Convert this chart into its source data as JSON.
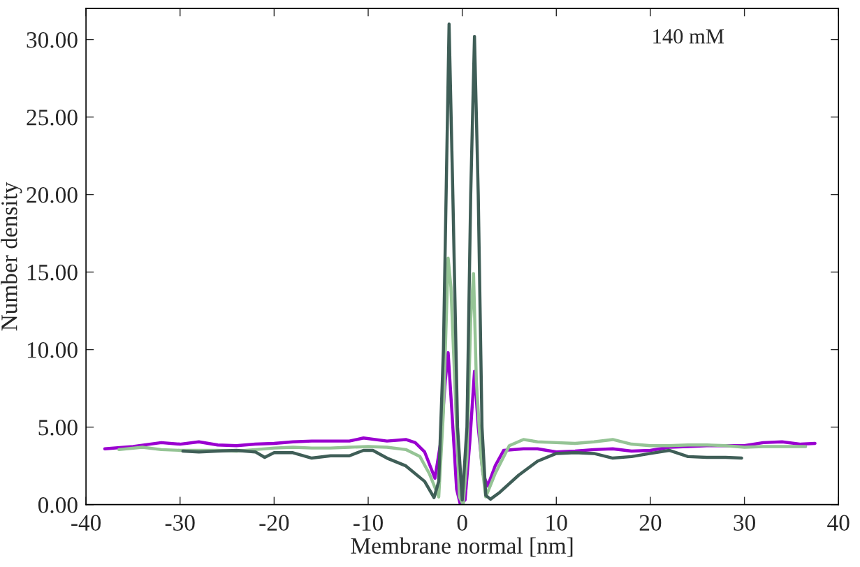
{
  "chart_data": {
    "type": "line",
    "xlabel": "Membrane normal [nm]",
    "ylabel": "Number density",
    "annotations": [
      "140 mM"
    ],
    "xlim": [
      -40,
      40
    ],
    "xticks": [
      -40,
      -30,
      -20,
      -10,
      0,
      10,
      20,
      30,
      40
    ],
    "ylim": [
      0,
      32
    ],
    "yticks": [
      {
        "value": 0,
        "label": "0.00"
      },
      {
        "value": 5,
        "label": "5.00"
      },
      {
        "value": 10,
        "label": "10.00"
      },
      {
        "value": 15,
        "label": "15.00"
      },
      {
        "value": 20,
        "label": "20.00"
      },
      {
        "value": 25,
        "label": "25.00"
      },
      {
        "value": 30,
        "label": "30.00"
      }
    ],
    "grid": false,
    "marker": "none",
    "line_style": "solid",
    "series": [
      {
        "color": "#9a00d0",
        "x": [
          -38,
          -35,
          -32,
          -30,
          -28,
          -26,
          -24,
          -22,
          -20,
          -18,
          -16,
          -14,
          -12,
          -10.5,
          -8,
          -6,
          -5,
          -4,
          -2.9,
          -2.3,
          -1.8,
          -1.5,
          -1.1,
          -0.6,
          -0.2,
          0.3,
          0.8,
          1.3,
          1.7,
          2.2,
          2.7,
          3.5,
          4.4,
          6.5,
          8,
          10,
          12,
          14,
          16,
          18,
          20,
          22,
          24,
          26,
          28,
          30,
          32,
          34,
          36,
          37.5
        ],
        "values": [
          3.6,
          3.75,
          4.0,
          3.9,
          4.05,
          3.85,
          3.8,
          3.9,
          3.95,
          4.05,
          4.1,
          4.1,
          4.1,
          4.3,
          4.1,
          4.2,
          4.0,
          3.4,
          1.7,
          4.0,
          8.0,
          9.8,
          6.0,
          1.0,
          0.0,
          0.3,
          4.0,
          8.6,
          5.0,
          2.0,
          1.2,
          2.5,
          3.5,
          3.6,
          3.6,
          3.4,
          3.45,
          3.55,
          3.6,
          3.45,
          3.5,
          3.7,
          3.75,
          3.8,
          3.8,
          3.8,
          4.0,
          4.05,
          3.9,
          3.95
        ]
      },
      {
        "color": "#95c495",
        "x": [
          -36.5,
          -34,
          -32,
          -30,
          -28,
          -26,
          -24,
          -22,
          -20,
          -18,
          -16,
          -14,
          -12,
          -10,
          -8,
          -6,
          -4.5,
          -3.5,
          -2.5,
          -2.0,
          -1.5,
          -1.2,
          -0.8,
          -0.3,
          0.1,
          0.5,
          0.9,
          1.2,
          1.5,
          2.0,
          2.5,
          3.5,
          5,
          6.5,
          8,
          10,
          12,
          14,
          16,
          18,
          20,
          22,
          24,
          26,
          28,
          30,
          32,
          34,
          36.5
        ],
        "values": [
          3.55,
          3.7,
          3.55,
          3.5,
          3.5,
          3.5,
          3.45,
          3.55,
          3.65,
          3.7,
          3.65,
          3.65,
          3.7,
          3.75,
          3.7,
          3.55,
          3.1,
          2.0,
          0.5,
          6.0,
          15.9,
          14.0,
          8.0,
          0.5,
          0.0,
          3.0,
          12.0,
          14.9,
          8.0,
          3.0,
          0.5,
          2.0,
          3.8,
          4.2,
          4.05,
          4.0,
          3.95,
          4.05,
          4.2,
          3.9,
          3.8,
          3.8,
          3.85,
          3.85,
          3.8,
          3.7,
          3.75,
          3.75,
          3.75
        ]
      },
      {
        "color": "#3f5e57",
        "x": [
          -29.7,
          -28,
          -26,
          -24,
          -22,
          -21,
          -20,
          -18,
          -16,
          -14,
          -12,
          -10.5,
          -9.5,
          -8,
          -6,
          -4,
          -3,
          -2.5,
          -2,
          -1.4,
          -1.0,
          -0.5,
          0,
          0.5,
          0.9,
          1.3,
          1.7,
          2.1,
          2.5,
          3,
          4,
          6,
          8,
          10,
          12,
          14,
          16,
          18,
          20,
          22,
          24,
          26,
          28,
          29.7
        ],
        "values": [
          3.45,
          3.4,
          3.45,
          3.5,
          3.4,
          3.05,
          3.35,
          3.35,
          3.0,
          3.15,
          3.15,
          3.5,
          3.5,
          3.0,
          2.5,
          1.5,
          0.45,
          1.5,
          10.0,
          31.0,
          20.0,
          5.0,
          0.3,
          5.0,
          20.0,
          30.2,
          20.0,
          5.0,
          0.6,
          0.35,
          0.8,
          1.9,
          2.8,
          3.3,
          3.35,
          3.3,
          3.0,
          3.1,
          3.3,
          3.5,
          3.1,
          3.05,
          3.05,
          3.0
        ]
      }
    ]
  }
}
